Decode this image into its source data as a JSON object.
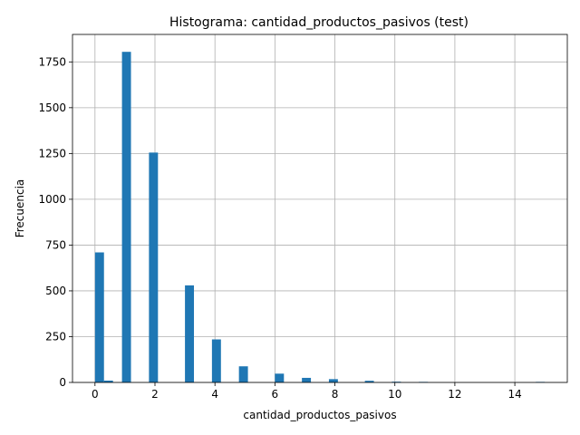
{
  "chart_data": {
    "type": "bar",
    "title": "Histograma: cantidad_productos_pasivos (test)",
    "xlabel": "cantidad_productos_pasivos",
    "ylabel": "Frecuencia",
    "xlim": [
      -0.75,
      15.75
    ],
    "ylim": [
      0,
      1900
    ],
    "xticks": [
      0,
      2,
      4,
      6,
      8,
      10,
      12,
      14
    ],
    "xtick_labels": [
      "0",
      "2",
      "4",
      "6",
      "8",
      "10",
      "12",
      "14"
    ],
    "yticks": [
      0,
      250,
      500,
      750,
      1000,
      1250,
      1500,
      1750
    ],
    "ytick_labels": [
      "0",
      "250",
      "500",
      "750",
      "1000",
      "1250",
      "1500",
      "1750"
    ],
    "grid": true,
    "bar_color": "#1f77b4",
    "bin_width": 0.3,
    "bins": [
      {
        "x0": 0.0,
        "x1": 0.3,
        "value": 710
      },
      {
        "x0": 0.3,
        "x1": 0.6,
        "value": 10
      },
      {
        "x0": 0.9,
        "x1": 1.2,
        "value": 1805
      },
      {
        "x0": 1.8,
        "x1": 2.1,
        "value": 1255
      },
      {
        "x0": 3.0,
        "x1": 3.3,
        "value": 530
      },
      {
        "x0": 3.9,
        "x1": 4.2,
        "value": 235
      },
      {
        "x0": 4.8,
        "x1": 5.1,
        "value": 88
      },
      {
        "x0": 6.0,
        "x1": 6.3,
        "value": 48
      },
      {
        "x0": 6.9,
        "x1": 7.2,
        "value": 25
      },
      {
        "x0": 7.8,
        "x1": 8.1,
        "value": 18
      },
      {
        "x0": 9.0,
        "x1": 9.3,
        "value": 9
      },
      {
        "x0": 9.9,
        "x1": 10.2,
        "value": 4
      },
      {
        "x0": 10.8,
        "x1": 11.1,
        "value": 3
      },
      {
        "x0": 14.7,
        "x1": 15.0,
        "value": 3
      }
    ]
  }
}
